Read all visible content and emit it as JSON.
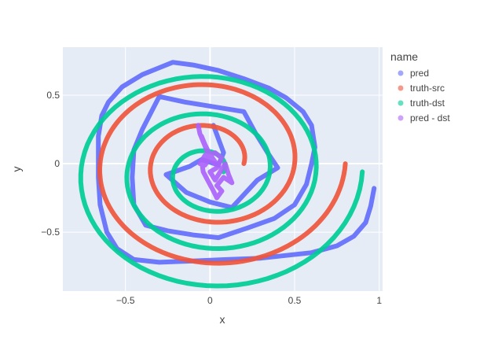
{
  "chart_data": {
    "type": "scatter",
    "title": "",
    "xlabel": "x",
    "ylabel": "y",
    "xlim": [
      -0.87,
      1.02
    ],
    "ylim": [
      -0.93,
      0.85
    ],
    "xticks": [
      -0.5,
      0,
      0.5,
      1
    ],
    "xtick_labels": [
      "−0.5",
      "0",
      "0.5",
      "1"
    ],
    "yticks": [
      -0.5,
      0,
      0.5
    ],
    "ytick_labels": [
      "−0.5",
      "0",
      "0.5"
    ],
    "grid": true,
    "legend_title": "name",
    "legend_position": "right",
    "series": [
      {
        "name": "pred",
        "color": "#636efa",
        "points": [
          [
            0.97,
            -0.18
          ],
          [
            0.95,
            -0.31
          ],
          [
            0.92,
            -0.43
          ],
          [
            0.85,
            -0.53
          ],
          [
            0.75,
            -0.6
          ],
          [
            0.6,
            -0.65
          ],
          [
            0.45,
            -0.67
          ],
          [
            0.3,
            -0.69
          ],
          [
            0.1,
            -0.7
          ],
          [
            -0.1,
            -0.71
          ],
          [
            -0.3,
            -0.72
          ],
          [
            -0.45,
            -0.7
          ],
          [
            -0.55,
            -0.62
          ],
          [
            -0.61,
            -0.5
          ],
          [
            -0.65,
            -0.3
          ],
          [
            -0.66,
            -0.1
          ],
          [
            -0.66,
            0.05
          ],
          [
            -0.66,
            0.2
          ],
          [
            -0.64,
            0.35
          ],
          [
            -0.6,
            0.45
          ],
          [
            -0.52,
            0.56
          ],
          [
            -0.4,
            0.65
          ],
          [
            -0.3,
            0.7
          ],
          [
            -0.22,
            0.74
          ],
          [
            -0.1,
            0.72
          ],
          [
            0.05,
            0.68
          ],
          [
            0.2,
            0.62
          ],
          [
            0.35,
            0.55
          ],
          [
            0.45,
            0.48
          ],
          [
            0.55,
            0.38
          ],
          [
            0.6,
            0.28
          ],
          [
            0.62,
            0.12
          ],
          [
            0.6,
            0.0
          ],
          [
            0.57,
            -0.15
          ],
          [
            0.5,
            -0.3
          ],
          [
            0.38,
            -0.4
          ],
          [
            0.22,
            -0.47
          ],
          [
            0.05,
            -0.54
          ],
          [
            -0.1,
            -0.52
          ],
          [
            -0.25,
            -0.49
          ],
          [
            -0.38,
            -0.45
          ],
          [
            -0.45,
            -0.3
          ],
          [
            -0.46,
            -0.1
          ],
          [
            -0.45,
            0.1
          ],
          [
            -0.4,
            0.25
          ],
          [
            -0.3,
            0.49
          ],
          [
            -0.15,
            0.45
          ],
          [
            0.0,
            0.42
          ],
          [
            0.2,
            0.38
          ],
          [
            0.27,
            0.22
          ],
          [
            0.34,
            0.08
          ],
          [
            0.4,
            -0.03
          ],
          [
            0.28,
            -0.12
          ],
          [
            0.13,
            -0.32
          ],
          [
            0.0,
            -0.28
          ],
          [
            -0.14,
            -0.21
          ],
          [
            -0.26,
            -0.08
          ],
          [
            -0.12,
            -0.02
          ],
          [
            -0.05,
            0.03
          ],
          [
            0.05,
            -0.01
          ],
          [
            0.08,
            0.08
          ],
          [
            0.05,
            0.18
          ],
          [
            0.02,
            0.28
          ]
        ]
      },
      {
        "name": "truth-src",
        "color": "#ef553b",
        "spiral": {
          "cx": 0.0,
          "cy": 0.0,
          "a_from": 0.0,
          "a_to": 12.566,
          "r_from": 0.2,
          "r_to": 0.8
        }
      },
      {
        "name": "truth-dst",
        "color": "#00cc96",
        "spiral": {
          "cx": 0.0,
          "cy": -0.06,
          "a_from": 0.0,
          "a_to": 18.85,
          "r_from": 0.08,
          "r_to": 0.9
        }
      },
      {
        "name": "pred - dst",
        "color": "#ab63fa",
        "points": [
          [
            -0.07,
            0.28
          ],
          [
            -0.06,
            0.22
          ],
          [
            -0.04,
            0.16
          ],
          [
            -0.02,
            0.1
          ],
          [
            0.0,
            0.04
          ],
          [
            -0.03,
            -0.01
          ],
          [
            -0.06,
            0.0
          ],
          [
            -0.02,
            0.06
          ],
          [
            0.03,
            0.08
          ],
          [
            0.07,
            0.04
          ],
          [
            0.04,
            -0.03
          ],
          [
            0.0,
            -0.06
          ],
          [
            0.03,
            -0.12
          ],
          [
            0.06,
            -0.06
          ],
          [
            0.09,
            0.0
          ],
          [
            0.11,
            -0.08
          ],
          [
            0.13,
            -0.14
          ],
          [
            0.08,
            -0.1
          ],
          [
            0.04,
            -0.16
          ],
          [
            0.07,
            -0.2
          ],
          [
            0.04,
            -0.25
          ],
          [
            0.02,
            -0.2
          ],
          [
            -0.01,
            -0.13
          ],
          [
            -0.04,
            -0.06
          ],
          [
            -0.05,
            0.02
          ],
          [
            -0.03,
            0.06
          ],
          [
            0.01,
            0.02
          ],
          [
            0.05,
            -0.02
          ],
          [
            0.02,
            0.03
          ],
          [
            -0.01,
            0.09
          ],
          [
            -0.03,
            0.14
          ],
          [
            -0.05,
            0.2
          ]
        ]
      }
    ]
  }
}
